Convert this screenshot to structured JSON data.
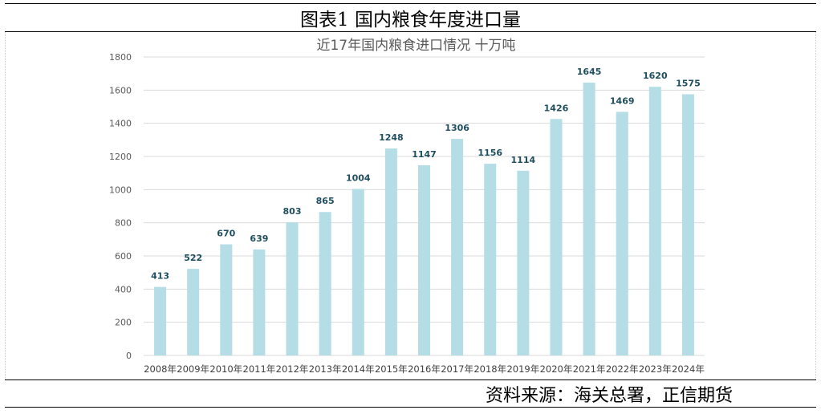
{
  "figure_title": "图表1  国内粮食年度进口量",
  "source": "资料来源：海关总署，正信期货",
  "chart_data": {
    "type": "bar",
    "title": "近17年国内粮食进口情况  十万吨",
    "categories": [
      "2008年",
      "2009年",
      "2010年",
      "2011年",
      "2012年",
      "2013年",
      "2014年",
      "2015年",
      "2016年",
      "2017年",
      "2018年",
      "2019年",
      "2020年",
      "2021年",
      "2022年",
      "2023年",
      "2024年"
    ],
    "values": [
      413,
      522,
      670,
      639,
      803,
      865,
      1004,
      1248,
      1147,
      1306,
      1156,
      1114,
      1426,
      1645,
      1469,
      1620,
      1575
    ],
    "ylim": [
      0,
      1800
    ],
    "yticks": [
      0,
      200,
      400,
      600,
      800,
      1000,
      1200,
      1400,
      1600,
      1800
    ],
    "grid": true,
    "colors": {
      "bar": "#b4dde6",
      "label": "#1f4e5f",
      "grid": "#d9d9d9",
      "axis_text": "#595959",
      "title": "#595959"
    }
  }
}
